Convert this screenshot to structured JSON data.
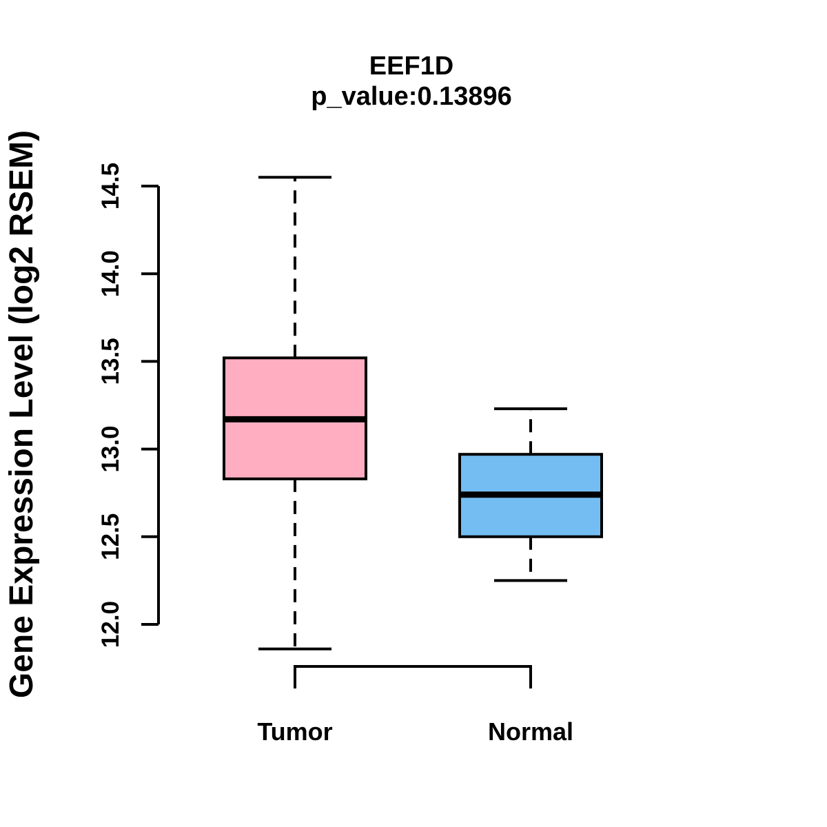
{
  "chart_data": {
    "type": "boxplot",
    "title": "EEF1D",
    "subtitle": "p_value:0.13896",
    "ylabel": "Gene Expression Level (log2 RSEM)",
    "xlabel": "",
    "yticks": [
      12.0,
      12.5,
      13.0,
      13.5,
      14.0,
      14.5
    ],
    "ylim": [
      11.8,
      14.6
    ],
    "grid": false,
    "legend": "none",
    "groups": [
      {
        "label": "Tumor",
        "color": "#FFAEC2",
        "whisker_low": 11.86,
        "q1": 12.83,
        "median": 13.17,
        "q3": 13.52,
        "whisker_high": 14.55
      },
      {
        "label": "Normal",
        "color": "#74BDF2",
        "whisker_low": 12.25,
        "q1": 12.5,
        "median": 12.74,
        "q3": 12.97,
        "whisker_high": 13.23
      }
    ]
  },
  "colors": {
    "axis": "#000000",
    "background": "#FFFFFF"
  }
}
